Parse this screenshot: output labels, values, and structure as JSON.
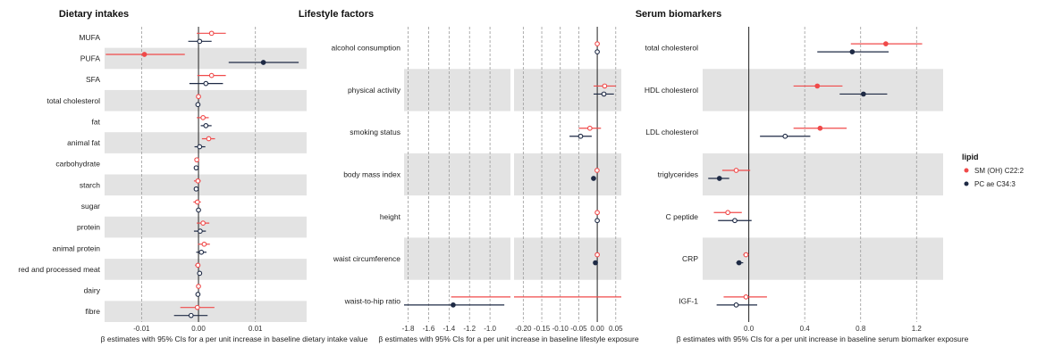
{
  "chart_data": [
    {
      "type": "forest",
      "title": "Dietary intakes",
      "xlabel": "β estimates with 95% CIs for a per unit increase in baseline dietary intake value",
      "xlim": [
        -0.0165,
        0.019
      ],
      "ticks": [
        -0.01,
        0.0,
        0.01
      ],
      "tick_labels": [
        "-0.01",
        "0.00",
        "0.01"
      ],
      "zero": 0,
      "categories": [
        "MUFA",
        "PUFA",
        "SFA",
        "total cholesterol",
        "fat",
        "animal fat",
        "carbohydrate",
        "starch",
        "sugar",
        "protein",
        "animal protein",
        "red and processed meat",
        "dairy",
        "fibre"
      ],
      "series": [
        {
          "name": "SM (OH) C22:2",
          "color": "#f04a4a",
          "est": [
            0.0023,
            -0.0095,
            0.0023,
            0.0,
            0.0008,
            0.0018,
            -0.0003,
            -0.0001,
            -0.0002,
            0.0008,
            0.001,
            -0.0001,
            0.0,
            -0.0002
          ],
          "lo": [
            -0.0003,
            -0.0163,
            -0.0002,
            -0.0002,
            -0.0003,
            0.0006,
            -0.0007,
            -0.0008,
            -0.0009,
            -0.0003,
            -0.0001,
            -0.0006,
            -0.0001,
            -0.0032
          ],
          "hi": [
            0.0048,
            -0.0024,
            0.0048,
            0.0002,
            0.0018,
            0.0029,
            0.0001,
            0.0004,
            0.0004,
            0.0019,
            0.002,
            0.0003,
            0.0001,
            0.0028
          ],
          "sig": [
            false,
            true,
            false,
            false,
            false,
            false,
            false,
            false,
            false,
            false,
            false,
            false,
            false,
            false
          ]
        },
        {
          "name": "PC ae C34:3",
          "color": "#1e2a45",
          "est": [
            0.0002,
            0.0114,
            0.0013,
            -0.0001,
            0.0013,
            0.0002,
            -0.0004,
            -0.0004,
            0.0,
            0.0003,
            0.0005,
            0.0002,
            -0.0001,
            -0.0013
          ],
          "lo": [
            -0.0018,
            0.0053,
            -0.0016,
            -0.0003,
            0.0004,
            -0.0007,
            -0.0007,
            -0.0008,
            -0.0003,
            -0.0008,
            -0.0004,
            -0.0002,
            -0.0002,
            -0.0043
          ],
          "hi": [
            0.0023,
            0.0176,
            0.0043,
            0.0001,
            0.0023,
            0.0012,
            -0.0001,
            0.0,
            0.0003,
            0.0013,
            0.0014,
            0.0006,
            0.0,
            0.0016
          ],
          "sig": [
            false,
            true,
            false,
            false,
            false,
            false,
            false,
            false,
            false,
            false,
            false,
            false,
            false,
            false
          ]
        }
      ]
    },
    {
      "type": "forest",
      "title": "Lifestyle factors",
      "xlabel": "β estimates with 95% CIs for a per unit increase in baseline lifestyle exposure",
      "broken_axis": true,
      "left_panel": {
        "xlim": [
          -1.84,
          -0.8
        ],
        "ticks": [
          -1.8,
          -1.6,
          -1.4,
          -1.2,
          -1.0
        ],
        "tick_labels": [
          "-1.8",
          "-1.6",
          "-1.4",
          "-1.2",
          "-1.0"
        ]
      },
      "right_panel": {
        "xlim": [
          -0.225,
          0.065
        ],
        "ticks": [
          -0.2,
          -0.15,
          -0.1,
          -0.05,
          0.0,
          0.05
        ],
        "tick_labels": [
          "-0.20",
          "-0.15",
          "-0.10",
          "-0.05",
          "0.00",
          "0.05"
        ]
      },
      "zero": 0,
      "categories": [
        "alcohol consumption",
        "physical activity",
        "smoking status",
        "body mass index",
        "height",
        "waist circumference",
        "waist-to-hip ratio"
      ],
      "series": [
        {
          "name": "SM (OH) C22:2",
          "color": "#f04a4a",
          "est": [
            0.0,
            0.02,
            -0.02,
            -0.0005,
            0.0,
            0.0,
            -0.56
          ],
          "lo": [
            -0.001,
            -0.01,
            -0.05,
            -0.006,
            -0.001,
            -0.001,
            -1.38
          ],
          "hi": [
            0.001,
            0.05,
            0.01,
            0.005,
            0.001,
            0.001,
            0.27
          ],
          "sig": [
            false,
            false,
            false,
            false,
            false,
            false,
            false
          ]
        },
        {
          "name": "PC ae C34:3",
          "color": "#1e2a45",
          "est": [
            0.0,
            0.018,
            -0.045,
            -0.01,
            0.0,
            -0.005,
            -1.36
          ],
          "lo": [
            -0.001,
            -0.01,
            -0.075,
            -0.012,
            -0.001,
            -0.006,
            -1.85
          ],
          "hi": [
            0.001,
            0.045,
            -0.015,
            -0.008,
            0.001,
            -0.004,
            -0.86
          ],
          "sig": [
            false,
            false,
            false,
            true,
            false,
            true,
            true
          ]
        }
      ]
    },
    {
      "type": "forest",
      "title": "Serum biomarkers",
      "xlabel": "β estimates with 95% CIs for a per unit increase in baseline serum biomarker exposure",
      "xlim": [
        -0.33,
        1.39
      ],
      "ticks": [
        0.0,
        0.4,
        0.8,
        1.2
      ],
      "tick_labels": [
        "0.0",
        "0.4",
        "0.8",
        "1.2"
      ],
      "zero": 0,
      "categories": [
        "total cholesterol",
        "HDL cholesterol",
        "LDL cholesterol",
        "triglycerides",
        "C peptide",
        "CRP",
        "IGF-1"
      ],
      "series": [
        {
          "name": "SM (OH) C22:2",
          "color": "#f04a4a",
          "est": [
            0.98,
            0.49,
            0.51,
            -0.09,
            -0.15,
            -0.02,
            -0.02
          ],
          "lo": [
            0.73,
            0.32,
            0.32,
            -0.19,
            -0.25,
            -0.04,
            -0.18
          ],
          "hi": [
            1.24,
            0.67,
            0.7,
            0.01,
            -0.05,
            0.0,
            0.13
          ],
          "sig": [
            true,
            true,
            true,
            false,
            false,
            false,
            false
          ]
        },
        {
          "name": "PC ae C34:3",
          "color": "#1e2a45",
          "est": [
            0.74,
            0.82,
            0.26,
            -0.21,
            -0.1,
            -0.07,
            -0.09
          ],
          "lo": [
            0.49,
            0.65,
            0.08,
            -0.29,
            -0.22,
            -0.09,
            -0.23
          ],
          "hi": [
            1.0,
            0.99,
            0.44,
            -0.14,
            0.02,
            -0.04,
            0.06
          ],
          "sig": [
            true,
            true,
            false,
            true,
            false,
            true,
            false
          ]
        }
      ]
    }
  ],
  "legend": {
    "title": "lipid",
    "placement": "right",
    "items": [
      {
        "label": "SM (OH) C22:2",
        "color": "#f04a4a"
      },
      {
        "label": "PC ae C34:3",
        "color": "#1e2a45"
      }
    ]
  }
}
